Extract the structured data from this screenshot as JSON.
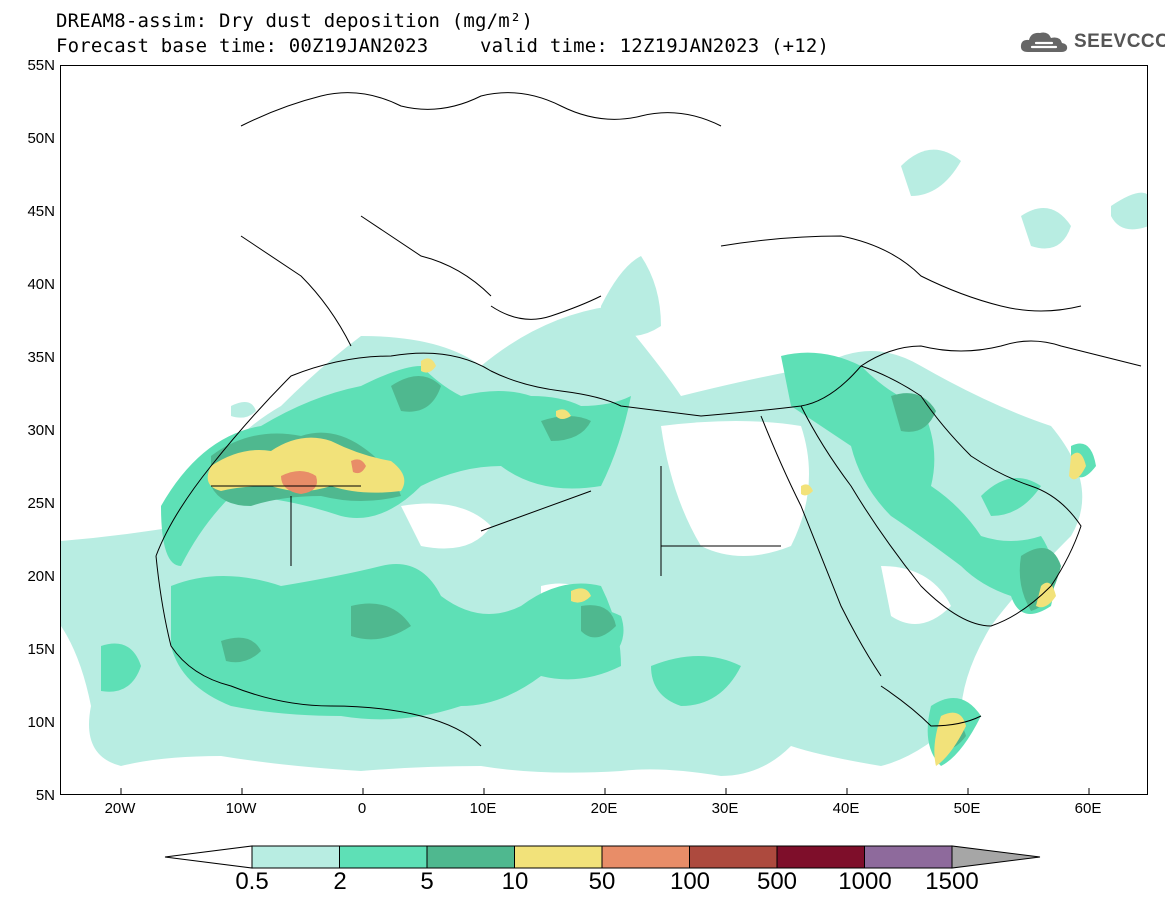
{
  "header": {
    "title_line1": "DREAM8-assim: Dry dust deposition (mg/m²)",
    "title_line2_left": "Forecast base time: 00Z19JAN2023",
    "title_line2_right": "valid time: 12Z19JAN2023 (+12)",
    "logo_text": "SEEVCCC"
  },
  "map": {
    "lat_labels": [
      "55N",
      "50N",
      "45N",
      "40N",
      "35N",
      "30N",
      "25N",
      "20N",
      "15N",
      "10N",
      "5N"
    ],
    "lon_labels": [
      "20W",
      "10W",
      "0",
      "10E",
      "20E",
      "30E",
      "40E",
      "50E",
      "60E"
    ],
    "extent": {
      "lon": [
        -25,
        65
      ],
      "lat": [
        5,
        55
      ]
    }
  },
  "legend": {
    "levels": [
      "0.5",
      "2",
      "5",
      "10",
      "50",
      "100",
      "500",
      "1000",
      "1500"
    ],
    "colors": [
      "#ffffff",
      "#b8ede2",
      "#5ee0b6",
      "#4fb88f",
      "#f2e27a",
      "#e88d68",
      "#ad4a3e",
      "#7e0e2a",
      "#8e6a9c",
      "#a6a6a6"
    ]
  }
}
